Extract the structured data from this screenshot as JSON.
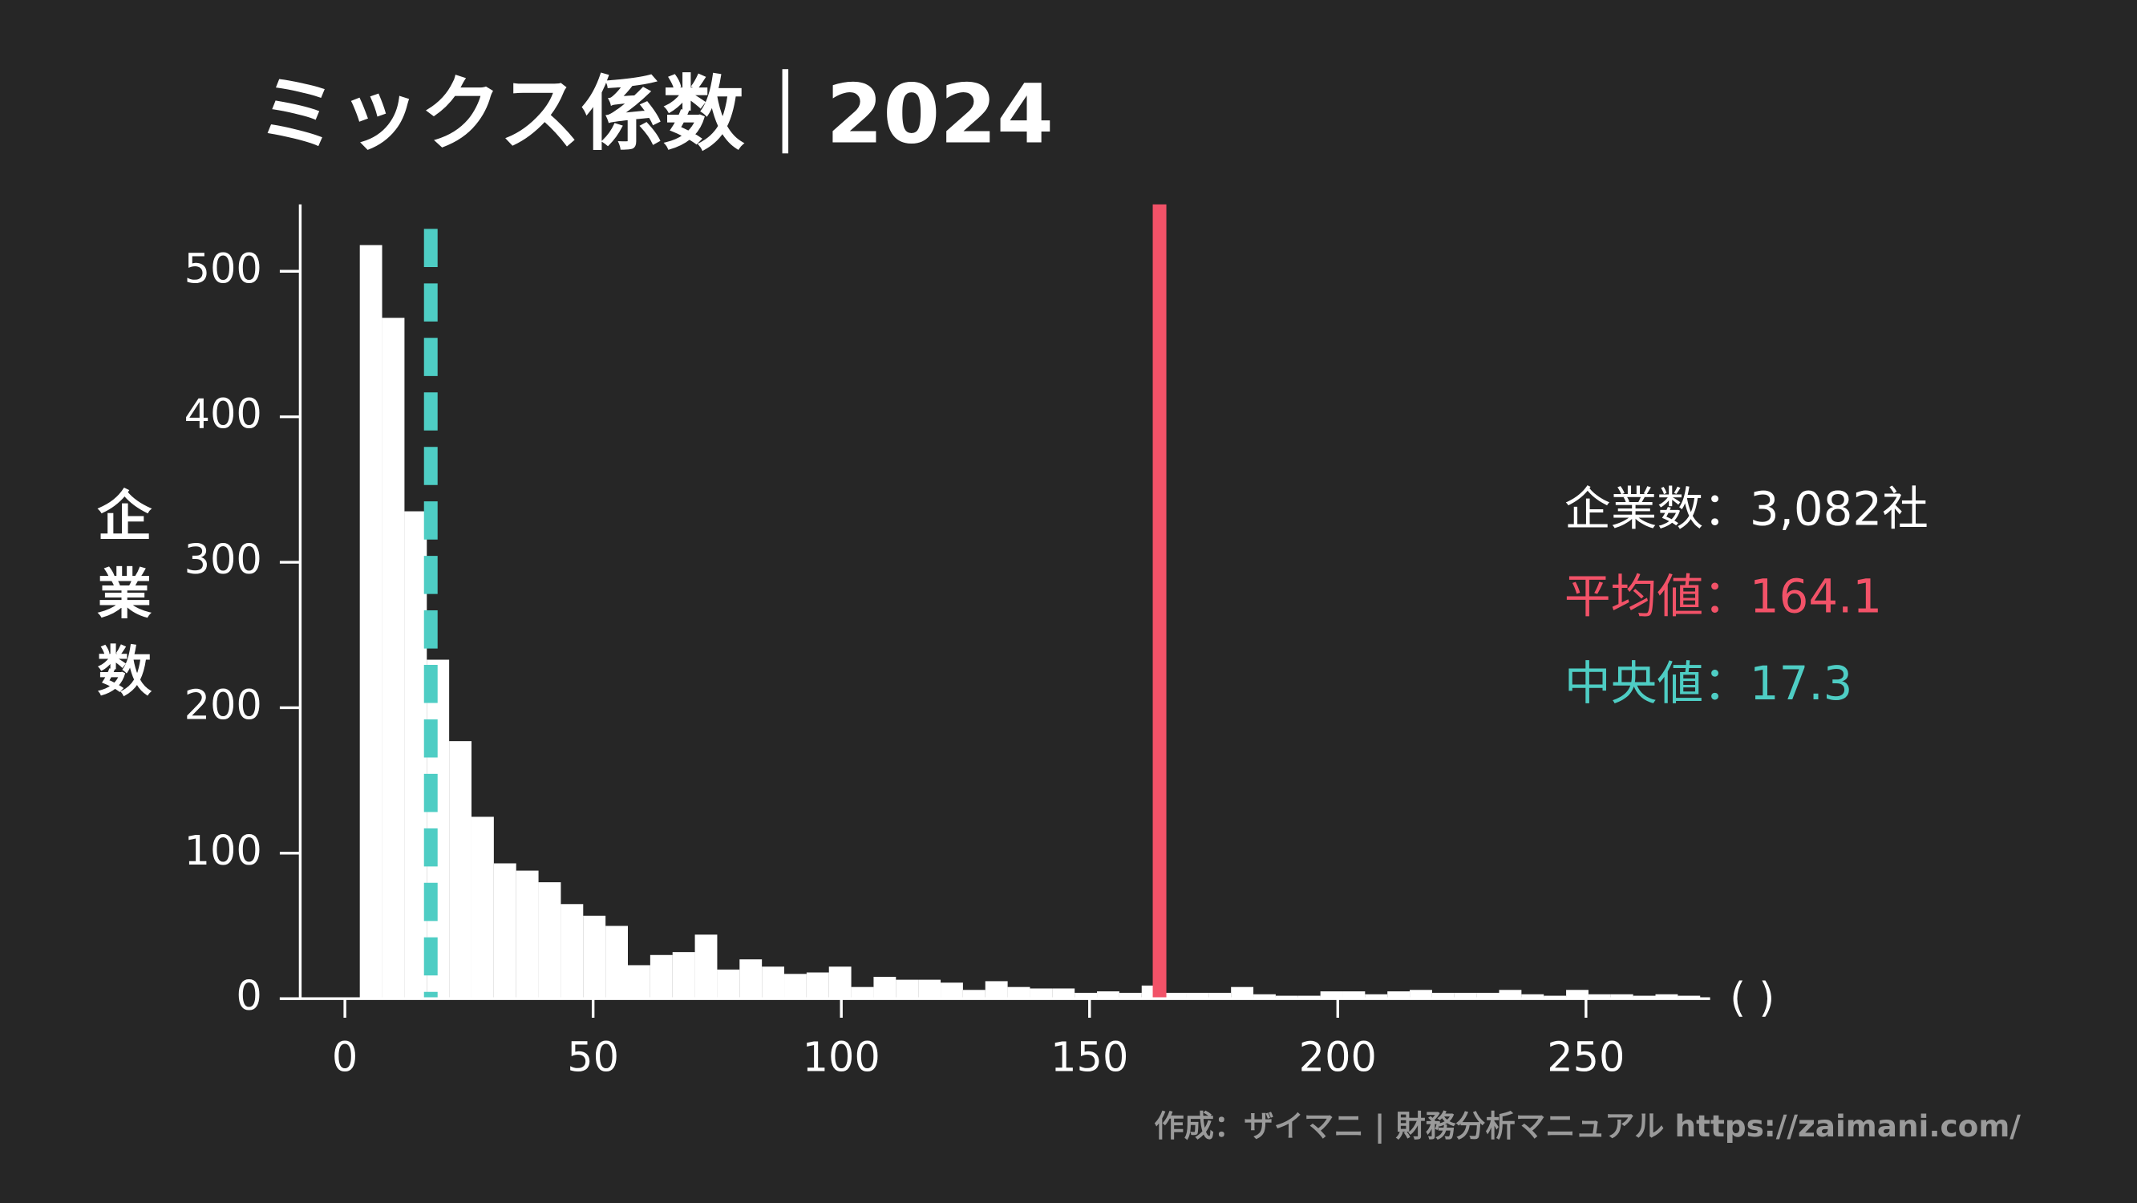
{
  "chart_data": {
    "type": "histogram",
    "title": "ミックス係数｜2024",
    "ylabel": "企業数",
    "xlabel": "( )",
    "bins": [
      3,
      7.5,
      12,
      16.5,
      21,
      25.5,
      30,
      34.5,
      39,
      43.5,
      48,
      52.5,
      57,
      61.5,
      66,
      70.5,
      75,
      79.5,
      84,
      88.5,
      93,
      97.5,
      102,
      106.5,
      111,
      115.5,
      120,
      124.5,
      129,
      133.5,
      138,
      142.5,
      147,
      151.5,
      156,
      160.5,
      165,
      169.5,
      174,
      178.5,
      183,
      187.5,
      192,
      196.5,
      201,
      205.5,
      210,
      214.5,
      219,
      223.5,
      228,
      232.5,
      237,
      241.5,
      246,
      250.5,
      255,
      259.5,
      264,
      268.5,
      273
    ],
    "values": [
      518,
      468,
      335,
      233,
      177,
      125,
      93,
      88,
      80,
      65,
      57,
      50,
      23,
      30,
      32,
      44,
      20,
      27,
      22,
      17,
      18,
      22,
      8,
      15,
      13,
      13,
      11,
      6,
      12,
      8,
      7,
      7,
      4,
      5,
      4,
      9,
      4,
      4,
      4,
      8,
      3,
      2,
      2,
      5,
      5,
      3,
      5,
      6,
      4,
      4,
      4,
      6,
      3,
      2,
      6,
      3,
      3,
      2,
      3,
      2
    ],
    "color": "#ffffff",
    "xlim": [
      -9,
      275
    ],
    "ylim": [
      0,
      546
    ],
    "xticks": [
      0,
      50,
      100,
      150,
      200,
      250
    ],
    "yticks": [
      0,
      100,
      200,
      300,
      400,
      500
    ],
    "count_label": "企業数：3,082社",
    "mean": {
      "label": "平均値：",
      "value": 164.1,
      "color": "#f25268"
    },
    "median": {
      "label": "中央値：",
      "value": 17.3,
      "color": "#4ecdc4"
    },
    "source": "作成：ザイマニ | 財務分析マニュアル https://zaimani.com/"
  }
}
